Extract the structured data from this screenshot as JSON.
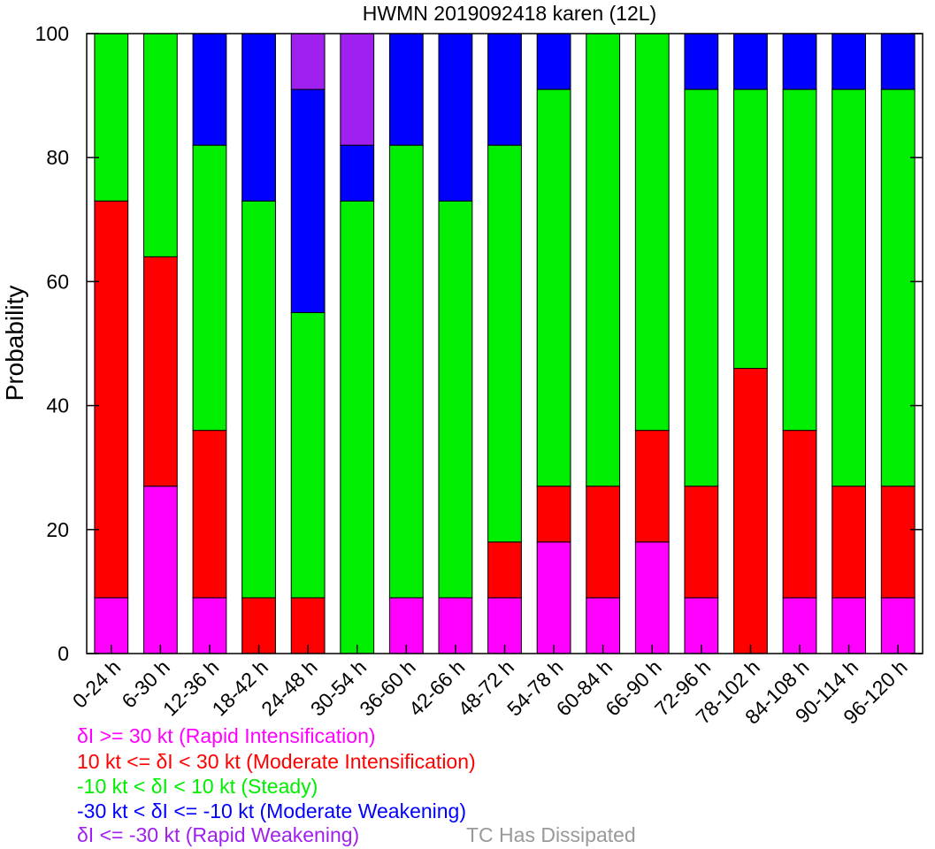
{
  "chart_data": {
    "type": "bar",
    "stacked": true,
    "title": "HWMN 2019092418 karen (12L)",
    "ylabel": "Probability",
    "ylim": [
      0,
      100
    ],
    "yticks": [
      0,
      20,
      40,
      60,
      80,
      100
    ],
    "categories": [
      "0-24 h",
      "6-30 h",
      "12-36 h",
      "18-42 h",
      "24-48 h",
      "30-54 h",
      "36-60 h",
      "42-66 h",
      "48-72 h",
      "54-78 h",
      "60-84 h",
      "66-90 h",
      "72-96 h",
      "78-102 h",
      "84-108 h",
      "90-114 h",
      "96-120 h"
    ],
    "series": [
      {
        "key": "ri",
        "color": "#ff00ff",
        "values": [
          9,
          27,
          9,
          0,
          0,
          0,
          9,
          9,
          9,
          18,
          9,
          18,
          9,
          0,
          9,
          9,
          9
        ]
      },
      {
        "key": "mi",
        "color": "#ff0000",
        "values": [
          64,
          37,
          27,
          9,
          9,
          0,
          0,
          0,
          9,
          9,
          18,
          18,
          18,
          46,
          27,
          18,
          18
        ]
      },
      {
        "key": "steady",
        "color": "#00ee00",
        "values": [
          27,
          36,
          46,
          64,
          46,
          73,
          73,
          64,
          64,
          64,
          73,
          64,
          64,
          45,
          55,
          64,
          64
        ]
      },
      {
        "key": "mw",
        "color": "#0000ff",
        "values": [
          0,
          0,
          18,
          27,
          36,
          9,
          18,
          27,
          18,
          9,
          0,
          0,
          9,
          9,
          9,
          9,
          9
        ]
      },
      {
        "key": "rw",
        "color": "#a020f0",
        "values": [
          0,
          0,
          0,
          0,
          9,
          18,
          0,
          0,
          0,
          0,
          0,
          0,
          0,
          0,
          0,
          0,
          0
        ]
      }
    ]
  },
  "legend": [
    {
      "text": "δI >= 30 kt (Rapid Intensification)",
      "color": "#ff00ff"
    },
    {
      "text": "10 kt <= δI < 30 kt (Moderate Intensification)",
      "color": "#ff0000"
    },
    {
      "text": "-10 kt < δI < 10 kt (Steady)",
      "color": "#00ee00"
    },
    {
      "text": "-30 kt < δI <= -10 kt (Moderate Weakening)",
      "color": "#0000ff"
    },
    {
      "text": "δI <= -30 kt (Rapid Weakening)",
      "color": "#a020f0"
    }
  ],
  "dissipated": {
    "text": "TC Has Dissipated",
    "color": "#999999"
  }
}
